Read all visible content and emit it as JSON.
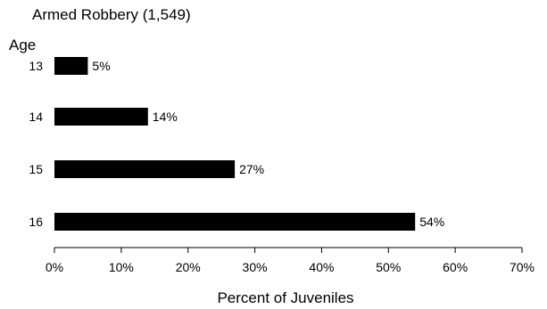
{
  "chart_data": {
    "type": "bar",
    "orientation": "horizontal",
    "title": "Armed Robbery (1,549)",
    "ylabel": "Age",
    "xlabel": "Percent of Juveniles",
    "categories": [
      "13",
      "14",
      "15",
      "16"
    ],
    "values": [
      5,
      14,
      27,
      54
    ],
    "value_labels": [
      "5%",
      "14%",
      "27%",
      "54%"
    ],
    "xlim": [
      0,
      70
    ],
    "xticks": [
      0,
      10,
      20,
      30,
      40,
      50,
      60,
      70
    ],
    "xtick_labels": [
      "0%",
      "10%",
      "20%",
      "30%",
      "40%",
      "50%",
      "60%",
      "70%"
    ],
    "grid": false,
    "legend": "none",
    "bar_color": "#000000"
  }
}
